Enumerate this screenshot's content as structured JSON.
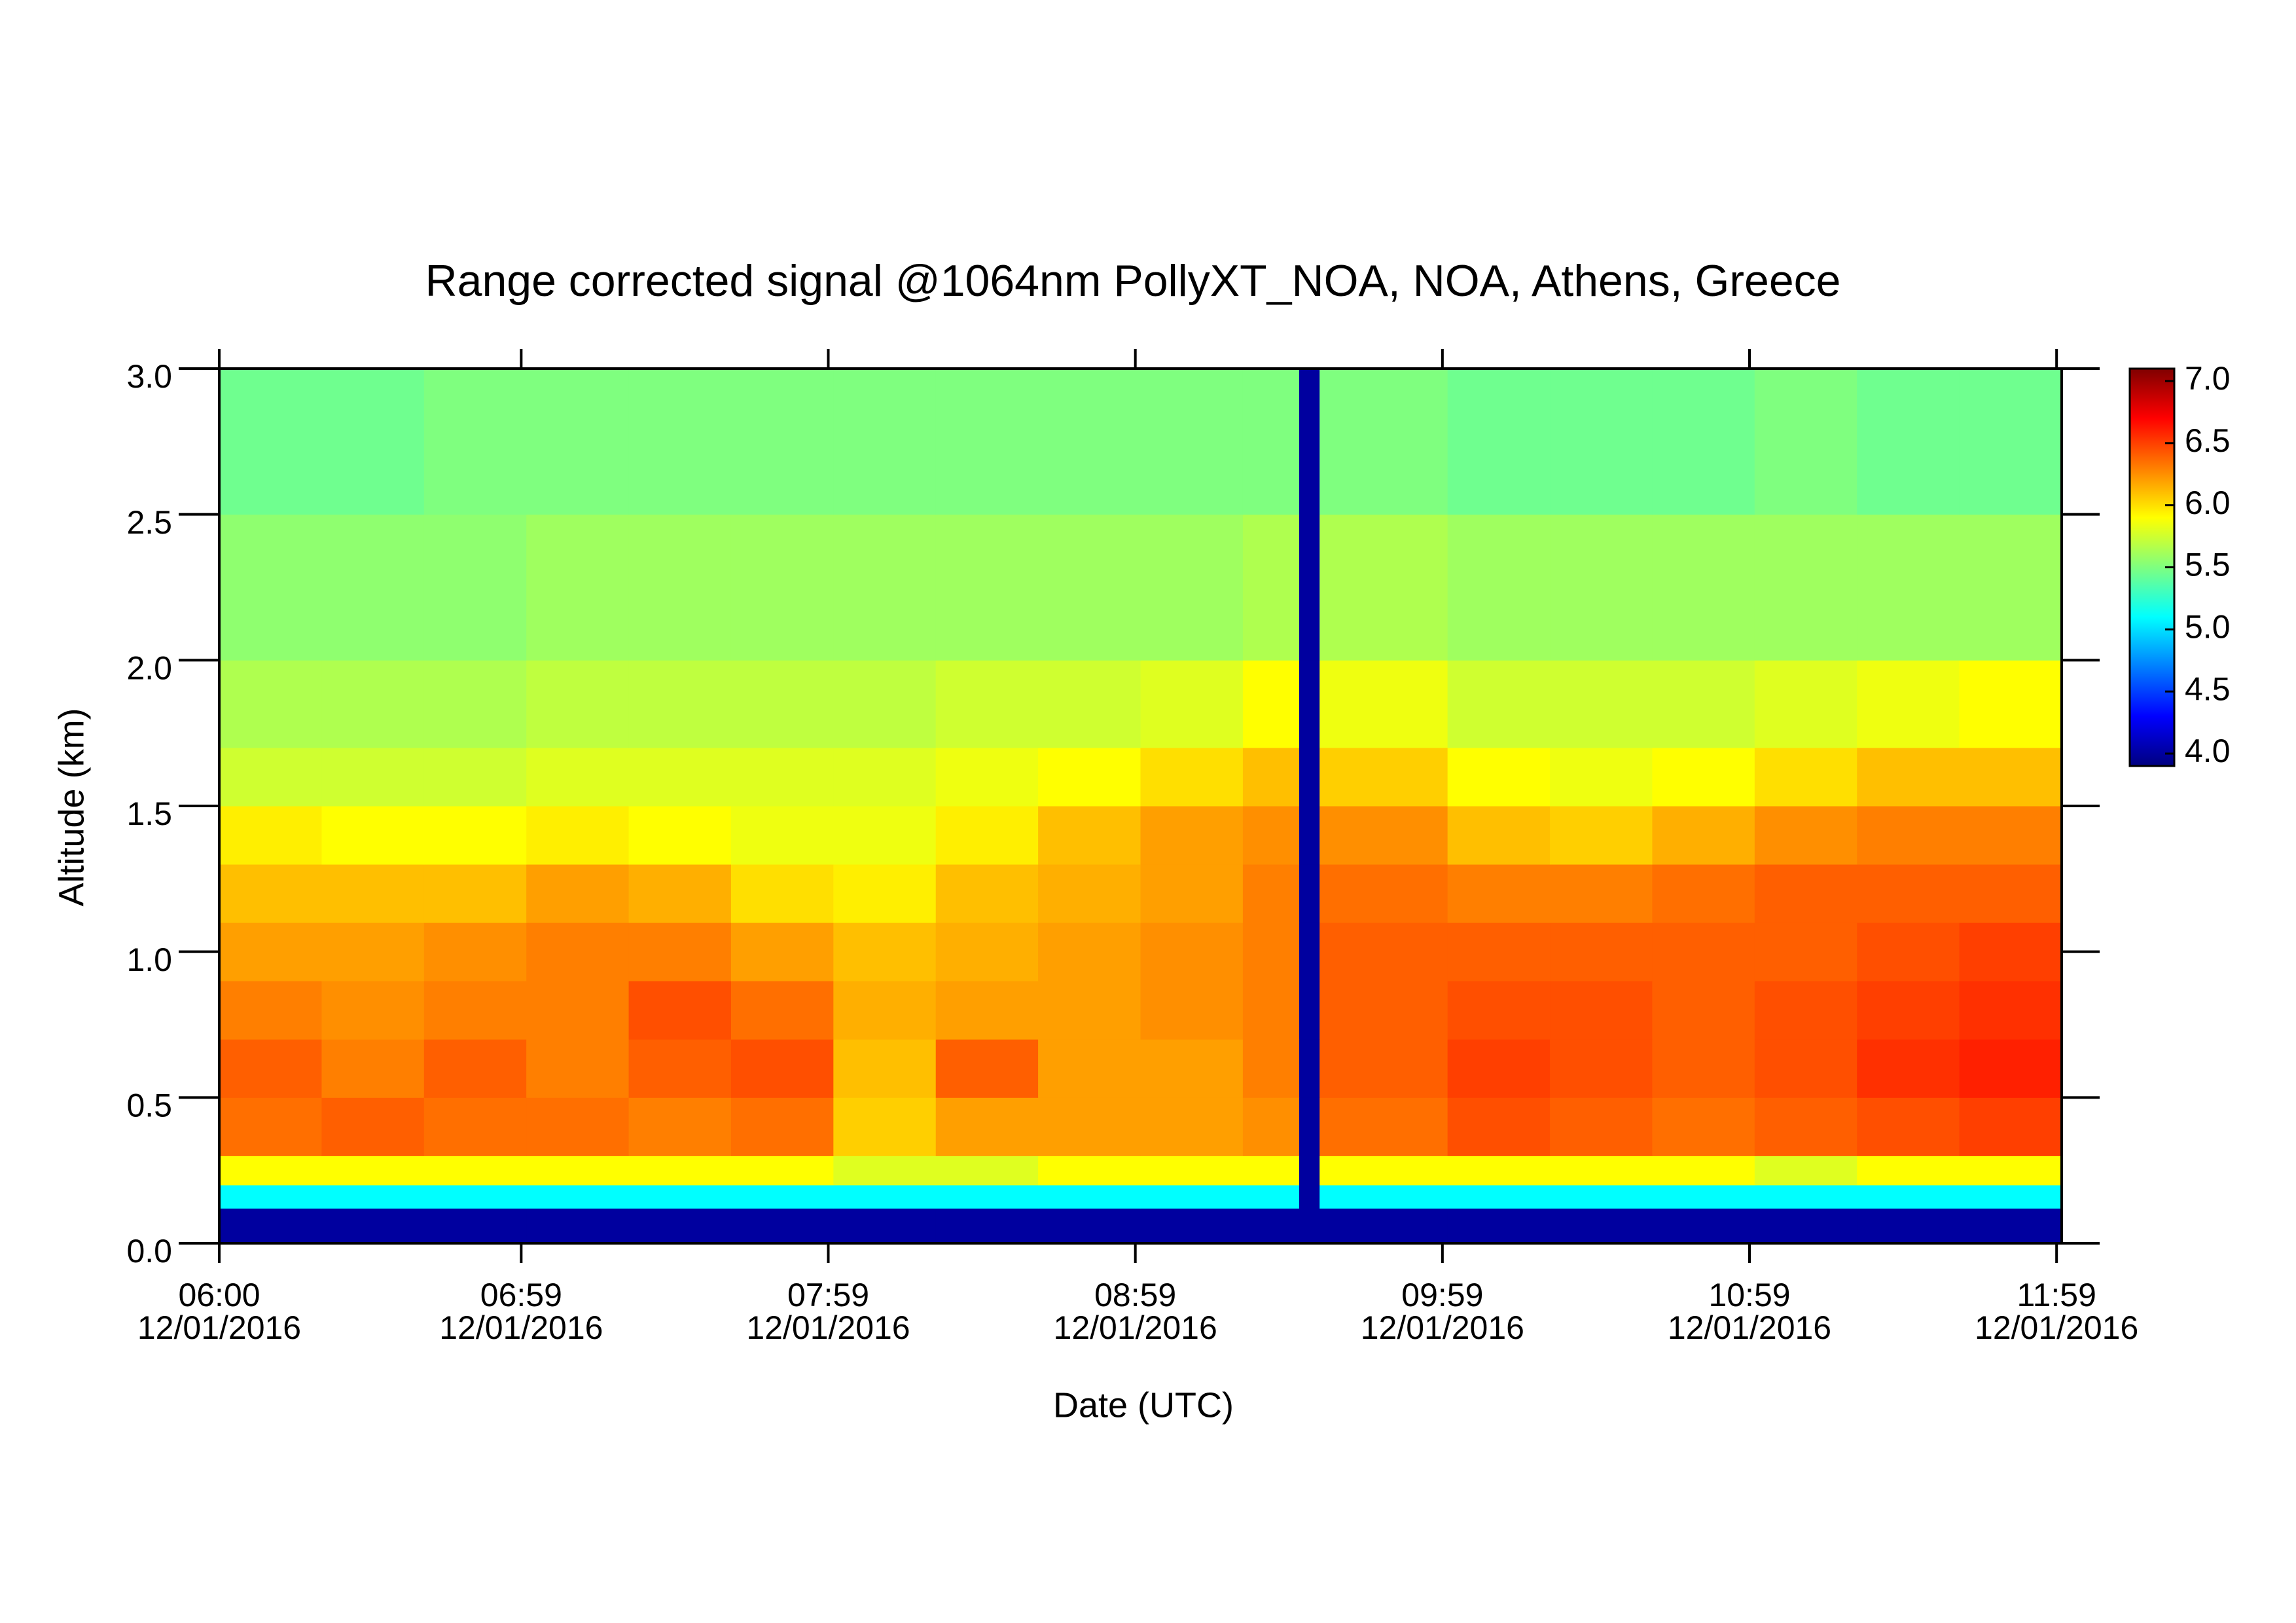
{
  "chart_data": {
    "type": "heatmap",
    "title": "Range corrected signal @1064nm  PollyXT_NOA, NOA, Athens, Greece",
    "xlabel": "Date (UTC)",
    "ylabel": "Altitude (km)",
    "xlim": [
      360,
      720
    ],
    "xticks": [
      {
        "value": 360,
        "label": "06:00"
      },
      {
        "value": 419,
        "label": "06:59"
      },
      {
        "value": 479,
        "label": "07:59"
      },
      {
        "value": 539,
        "label": "08:59"
      },
      {
        "value": 599,
        "label": "09:59"
      },
      {
        "value": 659,
        "label": "10:59"
      },
      {
        "value": 719,
        "label": "11:59"
      }
    ],
    "xtick_dates": [
      "12/01/2016",
      "12/01/2016",
      "12/01/2016",
      "12/01/2016",
      "12/01/2016",
      "12/01/2016",
      "12/01/2016"
    ],
    "ylim": [
      0,
      3
    ],
    "yticks": [
      {
        "value": 0,
        "label": "0.0"
      },
      0.5,
      {
        "value": 1,
        "label": "1.0"
      },
      1.5,
      {
        "value": 2,
        "label": "2.0"
      },
      2.5,
      {
        "value": 3,
        "label": "3.0"
      }
    ],
    "zlim": [
      3.9,
      7.1
    ],
    "zticks": [
      {
        "value": 4,
        "label": "4.0"
      },
      4.5,
      {
        "value": 5,
        "label": "5.0"
      },
      5.5,
      {
        "value": 6,
        "label": "6.0"
      },
      6.5,
      {
        "value": 7,
        "label": "7.0"
      }
    ],
    "colormap": [
      "#00007f",
      "#0000ff",
      "#007fff",
      "#00ffff",
      "#7fff7f",
      "#ffff00",
      "#ff7f00",
      "#ff0000",
      "#7f0000"
    ],
    "x_edges": [
      360,
      380,
      400,
      420,
      440,
      460,
      480,
      500,
      520,
      540,
      560,
      571,
      575,
      600,
      620,
      640,
      660,
      680,
      700,
      720
    ],
    "y_edges": [
      0,
      0.12,
      0.2,
      0.3,
      0.5,
      0.7,
      0.9,
      1.1,
      1.3,
      1.5,
      1.7,
      2.0,
      2.5,
      3.0
    ],
    "z": [
      [
        4.0,
        4.0,
        4.0,
        4.0,
        4.0,
        4.0,
        4.0,
        4.0,
        4.0,
        4.0,
        4.0,
        4.0,
        4.0,
        4.0,
        4.0,
        4.0,
        4.0,
        4.0,
        4.0
      ],
      [
        5.1,
        5.1,
        5.1,
        5.1,
        5.1,
        5.1,
        5.1,
        5.1,
        5.1,
        5.1,
        5.1,
        4.0,
        5.1,
        5.1,
        5.1,
        5.1,
        5.1,
        5.1,
        5.1
      ],
      [
        5.9,
        5.9,
        5.9,
        5.9,
        5.9,
        5.9,
        5.8,
        5.8,
        5.9,
        5.9,
        5.9,
        4.0,
        5.9,
        5.9,
        5.9,
        5.9,
        5.8,
        5.9,
        5.9
      ],
      [
        6.35,
        6.4,
        6.35,
        6.35,
        6.3,
        6.35,
        6.05,
        6.2,
        6.2,
        6.2,
        6.25,
        4.0,
        6.35,
        6.45,
        6.4,
        6.35,
        6.4,
        6.45,
        6.5
      ],
      [
        6.4,
        6.3,
        6.4,
        6.3,
        6.4,
        6.45,
        6.1,
        6.4,
        6.2,
        6.2,
        6.3,
        4.0,
        6.4,
        6.5,
        6.45,
        6.4,
        6.45,
        6.55,
        6.6
      ],
      [
        6.3,
        6.25,
        6.3,
        6.3,
        6.45,
        6.35,
        6.15,
        6.2,
        6.2,
        6.25,
        6.3,
        4.0,
        6.4,
        6.45,
        6.45,
        6.4,
        6.45,
        6.5,
        6.55
      ],
      [
        6.2,
        6.2,
        6.25,
        6.3,
        6.3,
        6.2,
        6.1,
        6.15,
        6.2,
        6.25,
        6.3,
        4.0,
        6.4,
        6.4,
        6.4,
        6.4,
        6.4,
        6.45,
        6.5
      ],
      [
        6.1,
        6.1,
        6.1,
        6.2,
        6.15,
        6.0,
        5.95,
        6.1,
        6.15,
        6.2,
        6.3,
        4.0,
        6.35,
        6.3,
        6.3,
        6.35,
        6.4,
        6.4,
        6.4
      ],
      [
        5.95,
        5.9,
        5.9,
        5.95,
        5.9,
        5.85,
        5.85,
        5.95,
        6.1,
        6.2,
        6.25,
        4.0,
        6.25,
        6.1,
        6.05,
        6.15,
        6.25,
        6.3,
        6.3
      ],
      [
        5.75,
        5.75,
        5.75,
        5.8,
        5.8,
        5.8,
        5.8,
        5.85,
        5.9,
        6.0,
        6.1,
        4.0,
        6.05,
        5.9,
        5.85,
        5.9,
        6.0,
        6.1,
        6.1
      ],
      [
        5.65,
        5.65,
        5.65,
        5.7,
        5.7,
        5.7,
        5.7,
        5.75,
        5.75,
        5.8,
        5.9,
        4.0,
        5.85,
        5.75,
        5.75,
        5.75,
        5.8,
        5.85,
        5.9
      ],
      [
        5.55,
        5.55,
        5.55,
        5.6,
        5.6,
        5.6,
        5.6,
        5.6,
        5.6,
        5.6,
        5.65,
        4.0,
        5.65,
        5.6,
        5.6,
        5.6,
        5.6,
        5.6,
        5.6
      ],
      [
        5.45,
        5.45,
        5.5,
        5.5,
        5.5,
        5.5,
        5.5,
        5.5,
        5.5,
        5.5,
        5.5,
        4.0,
        5.5,
        5.45,
        5.45,
        5.45,
        5.5,
        5.45,
        5.45
      ]
    ]
  }
}
